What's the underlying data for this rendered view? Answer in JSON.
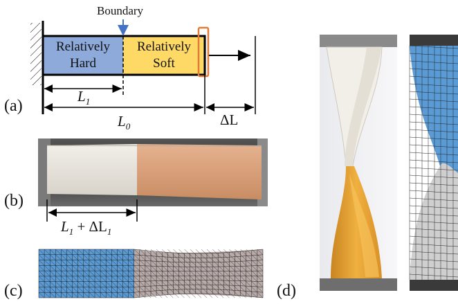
{
  "panel_a": {
    "tag": "(a)",
    "boundary_label": "Boundary",
    "hard_line1": "Relatively",
    "hard_line2": "Hard",
    "soft_line1": "Relatively",
    "soft_line2": "Soft",
    "l1_label": "L",
    "l1_sub": "1",
    "l0_label": "L",
    "l0_sub": "0",
    "dl_label": "ΔL",
    "colors": {
      "hard": "#8eaadb",
      "soft": "#ffd966",
      "highlight": "#e07b39",
      "arrow": "#4472c4"
    }
  },
  "panel_b": {
    "tag": "(b)",
    "measure_prefix": "L",
    "measure_sub1": "1",
    "measure_middle": " + ΔL",
    "measure_sub2": "1",
    "colors": {
      "white_part": "#e6e2da",
      "orange_part": "#d9a079",
      "bg": "#3a3a3a"
    }
  },
  "panel_c": {
    "tag": "(c)",
    "colors": {
      "hard_mesh": "#5b9bd5",
      "soft_mesh": "#b8aaa8",
      "mesh_line": "#1f1f1f"
    }
  },
  "panel_d": {
    "tag": "(d)",
    "colors": {
      "white_part": "#f2efe8",
      "orange_part": "#e6a532",
      "mesh_blue": "#5b9bd5",
      "mesh_gray": "#c9c9c9"
    }
  }
}
